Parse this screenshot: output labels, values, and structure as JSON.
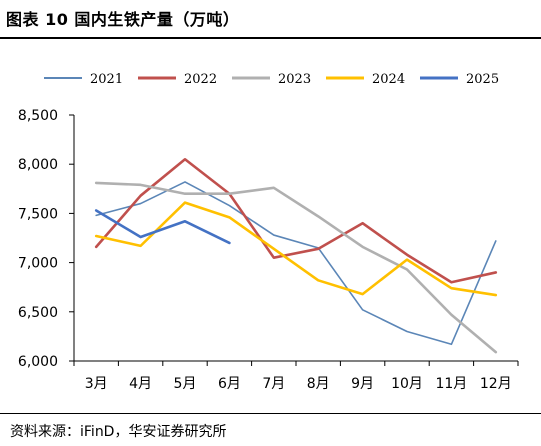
{
  "header": {
    "title": "图表 10  国内生铁产量（万吨）"
  },
  "footer": {
    "source": "资料来源：iFinD，华安证券研究所"
  },
  "chart_data": {
    "type": "line",
    "title": "",
    "xlabel": "",
    "ylabel": "",
    "categories": [
      "3月",
      "4月",
      "5月",
      "6月",
      "7月",
      "8月",
      "9月",
      "10月",
      "11月",
      "12月"
    ],
    "ylim": [
      6000,
      8500
    ],
    "yticks": [
      6000,
      6500,
      7000,
      7500,
      8000,
      8500
    ],
    "ytick_labels": [
      "6,000",
      "6,500",
      "7,000",
      "7,500",
      "8,000",
      "8,500"
    ],
    "grid": false,
    "legend_position": "top",
    "series": [
      {
        "name": "2021",
        "color": "#5b86b7",
        "width": 1.6,
        "values": [
          7480,
          7600,
          7820,
          7580,
          7280,
          7150,
          6520,
          6300,
          6170,
          7220
        ]
      },
      {
        "name": "2022",
        "color": "#c0504d",
        "width": 2.6,
        "values": [
          7160,
          7680,
          8050,
          7700,
          7050,
          7140,
          7400,
          7080,
          6800,
          6900
        ]
      },
      {
        "name": "2023",
        "color": "#b0b0b0",
        "width": 2.6,
        "values": [
          7810,
          7790,
          7700,
          7700,
          7760,
          7470,
          7160,
          6930,
          6470,
          6090
        ]
      },
      {
        "name": "2024",
        "color": "#ffc000",
        "width": 2.6,
        "values": [
          7270,
          7170,
          7610,
          7460,
          7140,
          6820,
          6680,
          7030,
          6740,
          6670
        ]
      },
      {
        "name": "2025",
        "color": "#4472c4",
        "width": 2.6,
        "values": [
          7530,
          7260,
          7420,
          7200,
          null,
          null,
          null,
          null,
          null,
          null
        ]
      }
    ]
  }
}
